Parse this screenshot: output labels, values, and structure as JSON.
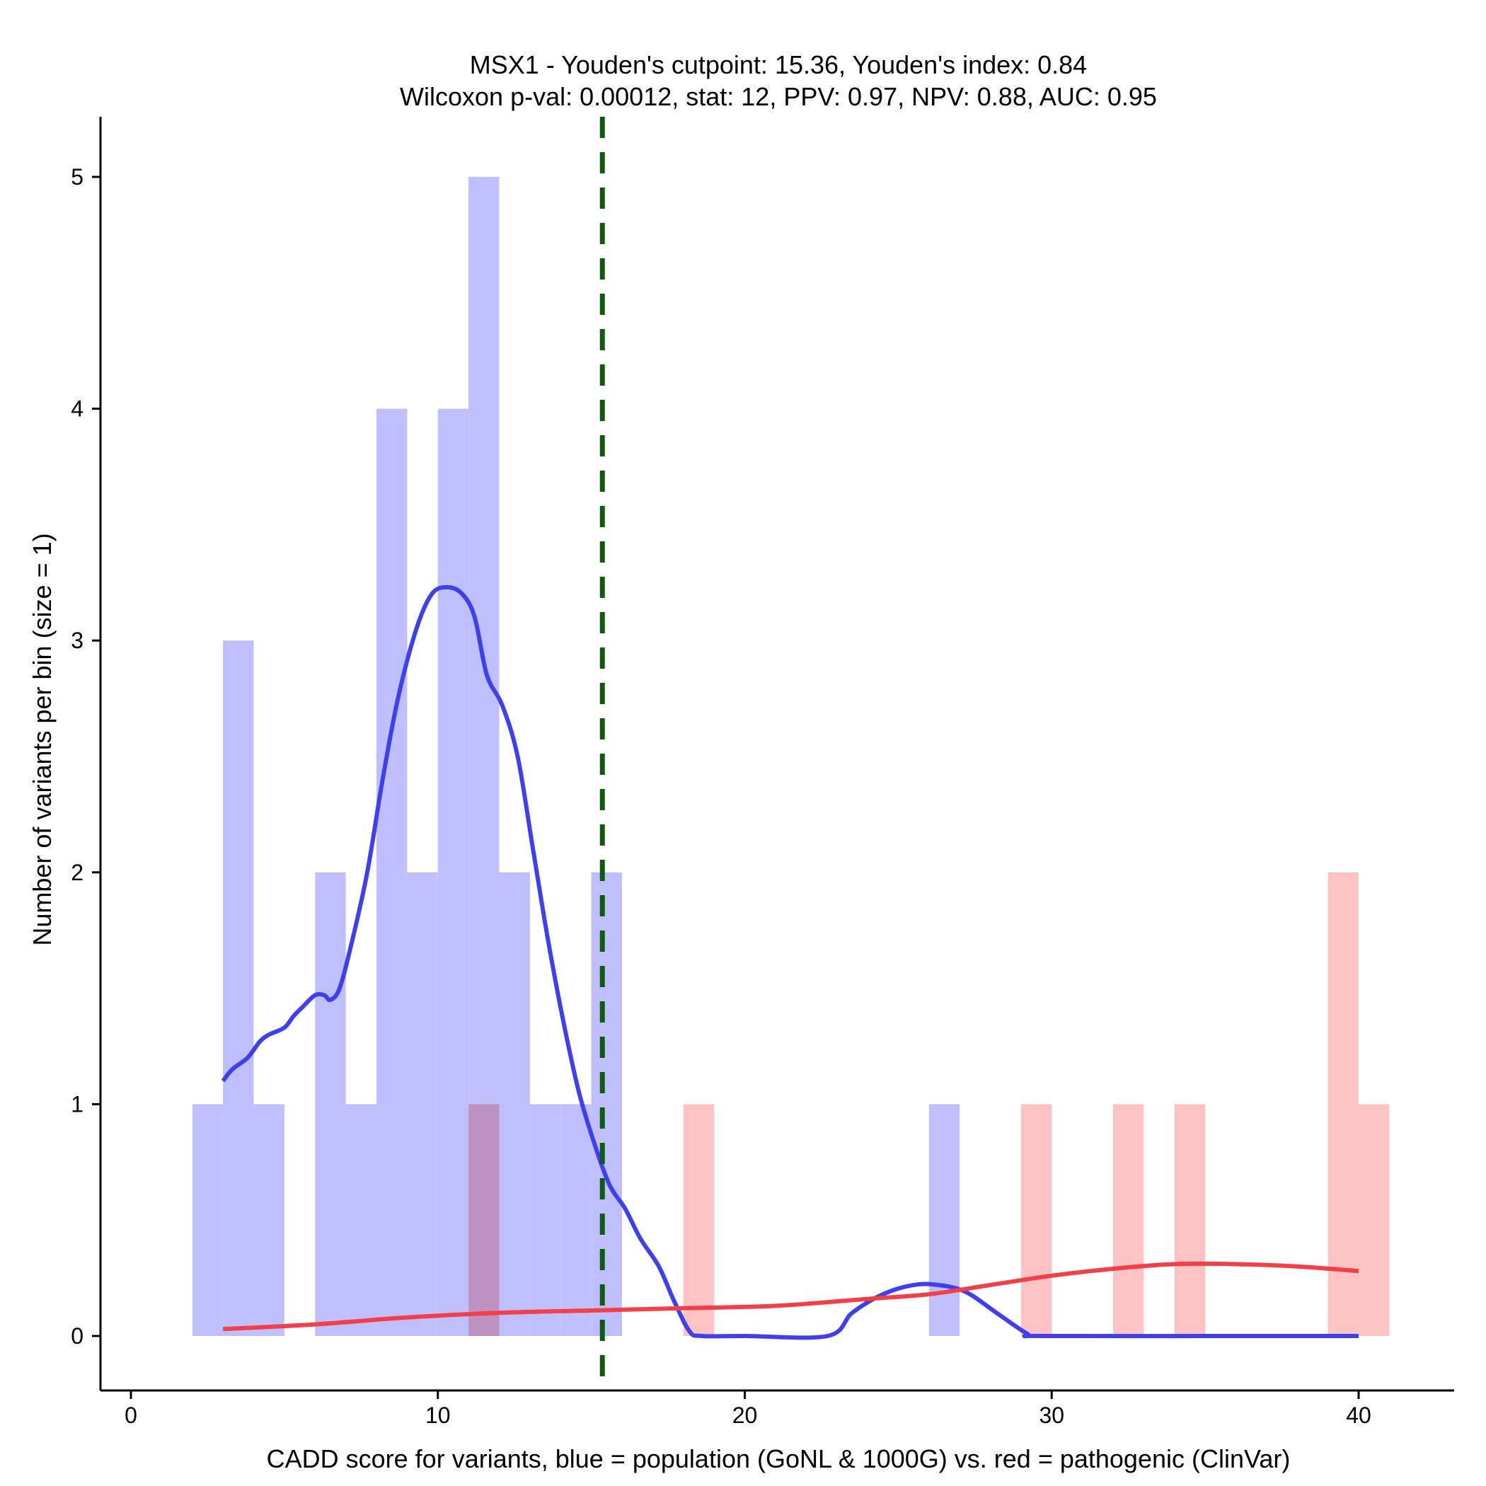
{
  "chart_data": {
    "type": "bar",
    "title_line1": "MSX1 - Youden's cutpoint: 15.36, Youden's index: 0.84",
    "title_line2": "Wilcoxon p-val: 0.00012, stat: 12, PPV: 0.97, NPV: 0.88, AUC: 0.95",
    "xlabel": "CADD score for variants, blue = population (GoNL & 1000G) vs. red = pathogenic (ClinVar)",
    "ylabel": "Number of variants per bin (size = 1)",
    "xlim": [
      -1,
      43
    ],
    "ylim": [
      -0.25,
      5.25
    ],
    "xticks": [
      0,
      10,
      20,
      30,
      40
    ],
    "yticks": [
      0,
      1,
      2,
      3,
      4,
      5
    ],
    "cutpoint": 15.36,
    "colors": {
      "population_bar": "#bfbffd",
      "pathogenic_bar": "#fdbfbf",
      "population_curve": "#3f3ff0",
      "pathogenic_curve": "#f23f48",
      "cutpoint_line": "#0f5a0f"
    },
    "series": [
      {
        "name": "population (GoNL & 1000G)",
        "bins": [
          {
            "start": 2,
            "end": 3,
            "count": 1
          },
          {
            "start": 3,
            "end": 4,
            "count": 3
          },
          {
            "start": 4,
            "end": 5,
            "count": 1
          },
          {
            "start": 6,
            "end": 7,
            "count": 2
          },
          {
            "start": 7,
            "end": 8,
            "count": 1
          },
          {
            "start": 8,
            "end": 9,
            "count": 4
          },
          {
            "start": 9,
            "end": 10,
            "count": 2
          },
          {
            "start": 10,
            "end": 11,
            "count": 4
          },
          {
            "start": 11,
            "end": 12,
            "count": 5
          },
          {
            "start": 12,
            "end": 13,
            "count": 2
          },
          {
            "start": 13,
            "end": 14,
            "count": 1
          },
          {
            "start": 14,
            "end": 15,
            "count": 1
          },
          {
            "start": 15,
            "end": 16,
            "count": 2
          },
          {
            "start": 26,
            "end": 27,
            "count": 1
          }
        ],
        "density": [
          [
            3,
            1.1
          ],
          [
            3.3,
            1.15
          ],
          [
            3.8,
            1.2
          ],
          [
            4.2,
            1.27
          ],
          [
            4.5,
            1.3
          ],
          [
            5,
            1.33
          ],
          [
            5.3,
            1.38
          ],
          [
            5.6,
            1.42
          ],
          [
            6,
            1.47
          ],
          [
            6.3,
            1.47
          ],
          [
            6.5,
            1.45
          ],
          [
            6.8,
            1.5
          ],
          [
            7.2,
            1.7
          ],
          [
            7.7,
            2.0
          ],
          [
            8.2,
            2.4
          ],
          [
            8.7,
            2.75
          ],
          [
            9.3,
            3.05
          ],
          [
            9.8,
            3.2
          ],
          [
            10.3,
            3.23
          ],
          [
            10.8,
            3.2
          ],
          [
            11.2,
            3.1
          ],
          [
            11.6,
            2.85
          ],
          [
            12.1,
            2.72
          ],
          [
            12.6,
            2.5
          ],
          [
            13.1,
            2.1
          ],
          [
            13.6,
            1.7
          ],
          [
            14.1,
            1.35
          ],
          [
            14.6,
            1.05
          ],
          [
            15.1,
            0.83
          ],
          [
            15.6,
            0.65
          ],
          [
            16.1,
            0.55
          ],
          [
            16.6,
            0.42
          ],
          [
            17.2,
            0.3
          ],
          [
            17.7,
            0.15
          ],
          [
            18.2,
            0.02
          ],
          [
            18.6,
            0.0
          ],
          [
            20,
            0.0
          ],
          [
            22.7,
            0.0
          ],
          [
            23.5,
            0.1
          ],
          [
            24.5,
            0.18
          ],
          [
            25.5,
            0.22
          ],
          [
            26.3,
            0.22
          ],
          [
            27.2,
            0.19
          ],
          [
            28.2,
            0.1
          ],
          [
            29.2,
            0.01
          ],
          [
            29.6,
            0.0
          ],
          [
            35,
            0.0
          ],
          [
            40,
            0.0
          ]
        ]
      },
      {
        "name": "pathogenic (ClinVar)",
        "bins": [
          {
            "start": 11,
            "end": 12,
            "count": 1
          },
          {
            "start": 18,
            "end": 19,
            "count": 1
          },
          {
            "start": 29,
            "end": 30,
            "count": 1
          },
          {
            "start": 32,
            "end": 33,
            "count": 1
          },
          {
            "start": 34,
            "end": 35,
            "count": 1
          },
          {
            "start": 39,
            "end": 40,
            "count": 2
          },
          {
            "start": 40,
            "end": 41,
            "count": 1
          }
        ],
        "density": [
          [
            3,
            0.03
          ],
          [
            6,
            0.05
          ],
          [
            9,
            0.08
          ],
          [
            12,
            0.1
          ],
          [
            15,
            0.11
          ],
          [
            18,
            0.12
          ],
          [
            21,
            0.13
          ],
          [
            24,
            0.16
          ],
          [
            26,
            0.18
          ],
          [
            28,
            0.22
          ],
          [
            30,
            0.26
          ],
          [
            32,
            0.29
          ],
          [
            34,
            0.31
          ],
          [
            36,
            0.31
          ],
          [
            38,
            0.3
          ],
          [
            40,
            0.28
          ]
        ]
      }
    ]
  }
}
